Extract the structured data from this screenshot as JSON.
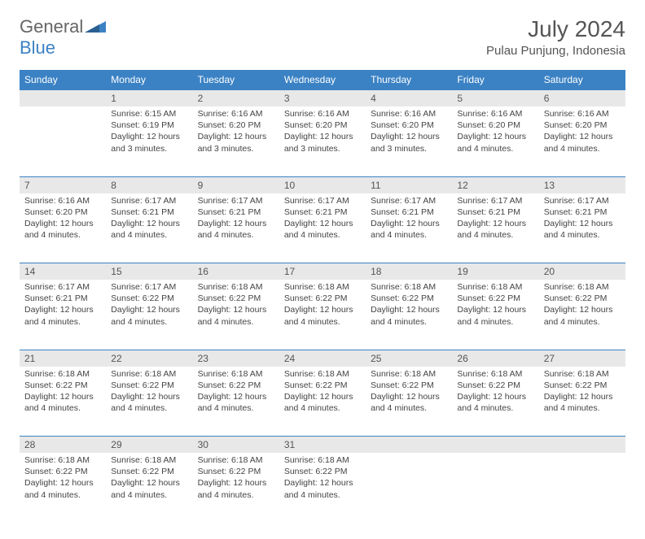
{
  "brand": {
    "part1": "General",
    "part2": "Blue"
  },
  "title": "July 2024",
  "location": "Pulau Punjung, Indonesia",
  "colors": {
    "header_bg": "#3b82c4",
    "daynum_bg": "#e8e8e8",
    "text": "#444444",
    "title_text": "#555555"
  },
  "daysOfWeek": [
    "Sunday",
    "Monday",
    "Tuesday",
    "Wednesday",
    "Thursday",
    "Friday",
    "Saturday"
  ],
  "startOffset": 1,
  "daysInMonth": 31,
  "dayData": {
    "1": {
      "sunrise": "6:15 AM",
      "sunset": "6:19 PM",
      "daylight": "12 hours and 3 minutes."
    },
    "2": {
      "sunrise": "6:16 AM",
      "sunset": "6:20 PM",
      "daylight": "12 hours and 3 minutes."
    },
    "3": {
      "sunrise": "6:16 AM",
      "sunset": "6:20 PM",
      "daylight": "12 hours and 3 minutes."
    },
    "4": {
      "sunrise": "6:16 AM",
      "sunset": "6:20 PM",
      "daylight": "12 hours and 3 minutes."
    },
    "5": {
      "sunrise": "6:16 AM",
      "sunset": "6:20 PM",
      "daylight": "12 hours and 4 minutes."
    },
    "6": {
      "sunrise": "6:16 AM",
      "sunset": "6:20 PM",
      "daylight": "12 hours and 4 minutes."
    },
    "7": {
      "sunrise": "6:16 AM",
      "sunset": "6:20 PM",
      "daylight": "12 hours and 4 minutes."
    },
    "8": {
      "sunrise": "6:17 AM",
      "sunset": "6:21 PM",
      "daylight": "12 hours and 4 minutes."
    },
    "9": {
      "sunrise": "6:17 AM",
      "sunset": "6:21 PM",
      "daylight": "12 hours and 4 minutes."
    },
    "10": {
      "sunrise": "6:17 AM",
      "sunset": "6:21 PM",
      "daylight": "12 hours and 4 minutes."
    },
    "11": {
      "sunrise": "6:17 AM",
      "sunset": "6:21 PM",
      "daylight": "12 hours and 4 minutes."
    },
    "12": {
      "sunrise": "6:17 AM",
      "sunset": "6:21 PM",
      "daylight": "12 hours and 4 minutes."
    },
    "13": {
      "sunrise": "6:17 AM",
      "sunset": "6:21 PM",
      "daylight": "12 hours and 4 minutes."
    },
    "14": {
      "sunrise": "6:17 AM",
      "sunset": "6:21 PM",
      "daylight": "12 hours and 4 minutes."
    },
    "15": {
      "sunrise": "6:17 AM",
      "sunset": "6:22 PM",
      "daylight": "12 hours and 4 minutes."
    },
    "16": {
      "sunrise": "6:18 AM",
      "sunset": "6:22 PM",
      "daylight": "12 hours and 4 minutes."
    },
    "17": {
      "sunrise": "6:18 AM",
      "sunset": "6:22 PM",
      "daylight": "12 hours and 4 minutes."
    },
    "18": {
      "sunrise": "6:18 AM",
      "sunset": "6:22 PM",
      "daylight": "12 hours and 4 minutes."
    },
    "19": {
      "sunrise": "6:18 AM",
      "sunset": "6:22 PM",
      "daylight": "12 hours and 4 minutes."
    },
    "20": {
      "sunrise": "6:18 AM",
      "sunset": "6:22 PM",
      "daylight": "12 hours and 4 minutes."
    },
    "21": {
      "sunrise": "6:18 AM",
      "sunset": "6:22 PM",
      "daylight": "12 hours and 4 minutes."
    },
    "22": {
      "sunrise": "6:18 AM",
      "sunset": "6:22 PM",
      "daylight": "12 hours and 4 minutes."
    },
    "23": {
      "sunrise": "6:18 AM",
      "sunset": "6:22 PM",
      "daylight": "12 hours and 4 minutes."
    },
    "24": {
      "sunrise": "6:18 AM",
      "sunset": "6:22 PM",
      "daylight": "12 hours and 4 minutes."
    },
    "25": {
      "sunrise": "6:18 AM",
      "sunset": "6:22 PM",
      "daylight": "12 hours and 4 minutes."
    },
    "26": {
      "sunrise": "6:18 AM",
      "sunset": "6:22 PM",
      "daylight": "12 hours and 4 minutes."
    },
    "27": {
      "sunrise": "6:18 AM",
      "sunset": "6:22 PM",
      "daylight": "12 hours and 4 minutes."
    },
    "28": {
      "sunrise": "6:18 AM",
      "sunset": "6:22 PM",
      "daylight": "12 hours and 4 minutes."
    },
    "29": {
      "sunrise": "6:18 AM",
      "sunset": "6:22 PM",
      "daylight": "12 hours and 4 minutes."
    },
    "30": {
      "sunrise": "6:18 AM",
      "sunset": "6:22 PM",
      "daylight": "12 hours and 4 minutes."
    },
    "31": {
      "sunrise": "6:18 AM",
      "sunset": "6:22 PM",
      "daylight": "12 hours and 4 minutes."
    }
  },
  "labels": {
    "sunrise": "Sunrise:",
    "sunset": "Sunset:",
    "daylight": "Daylight:"
  }
}
